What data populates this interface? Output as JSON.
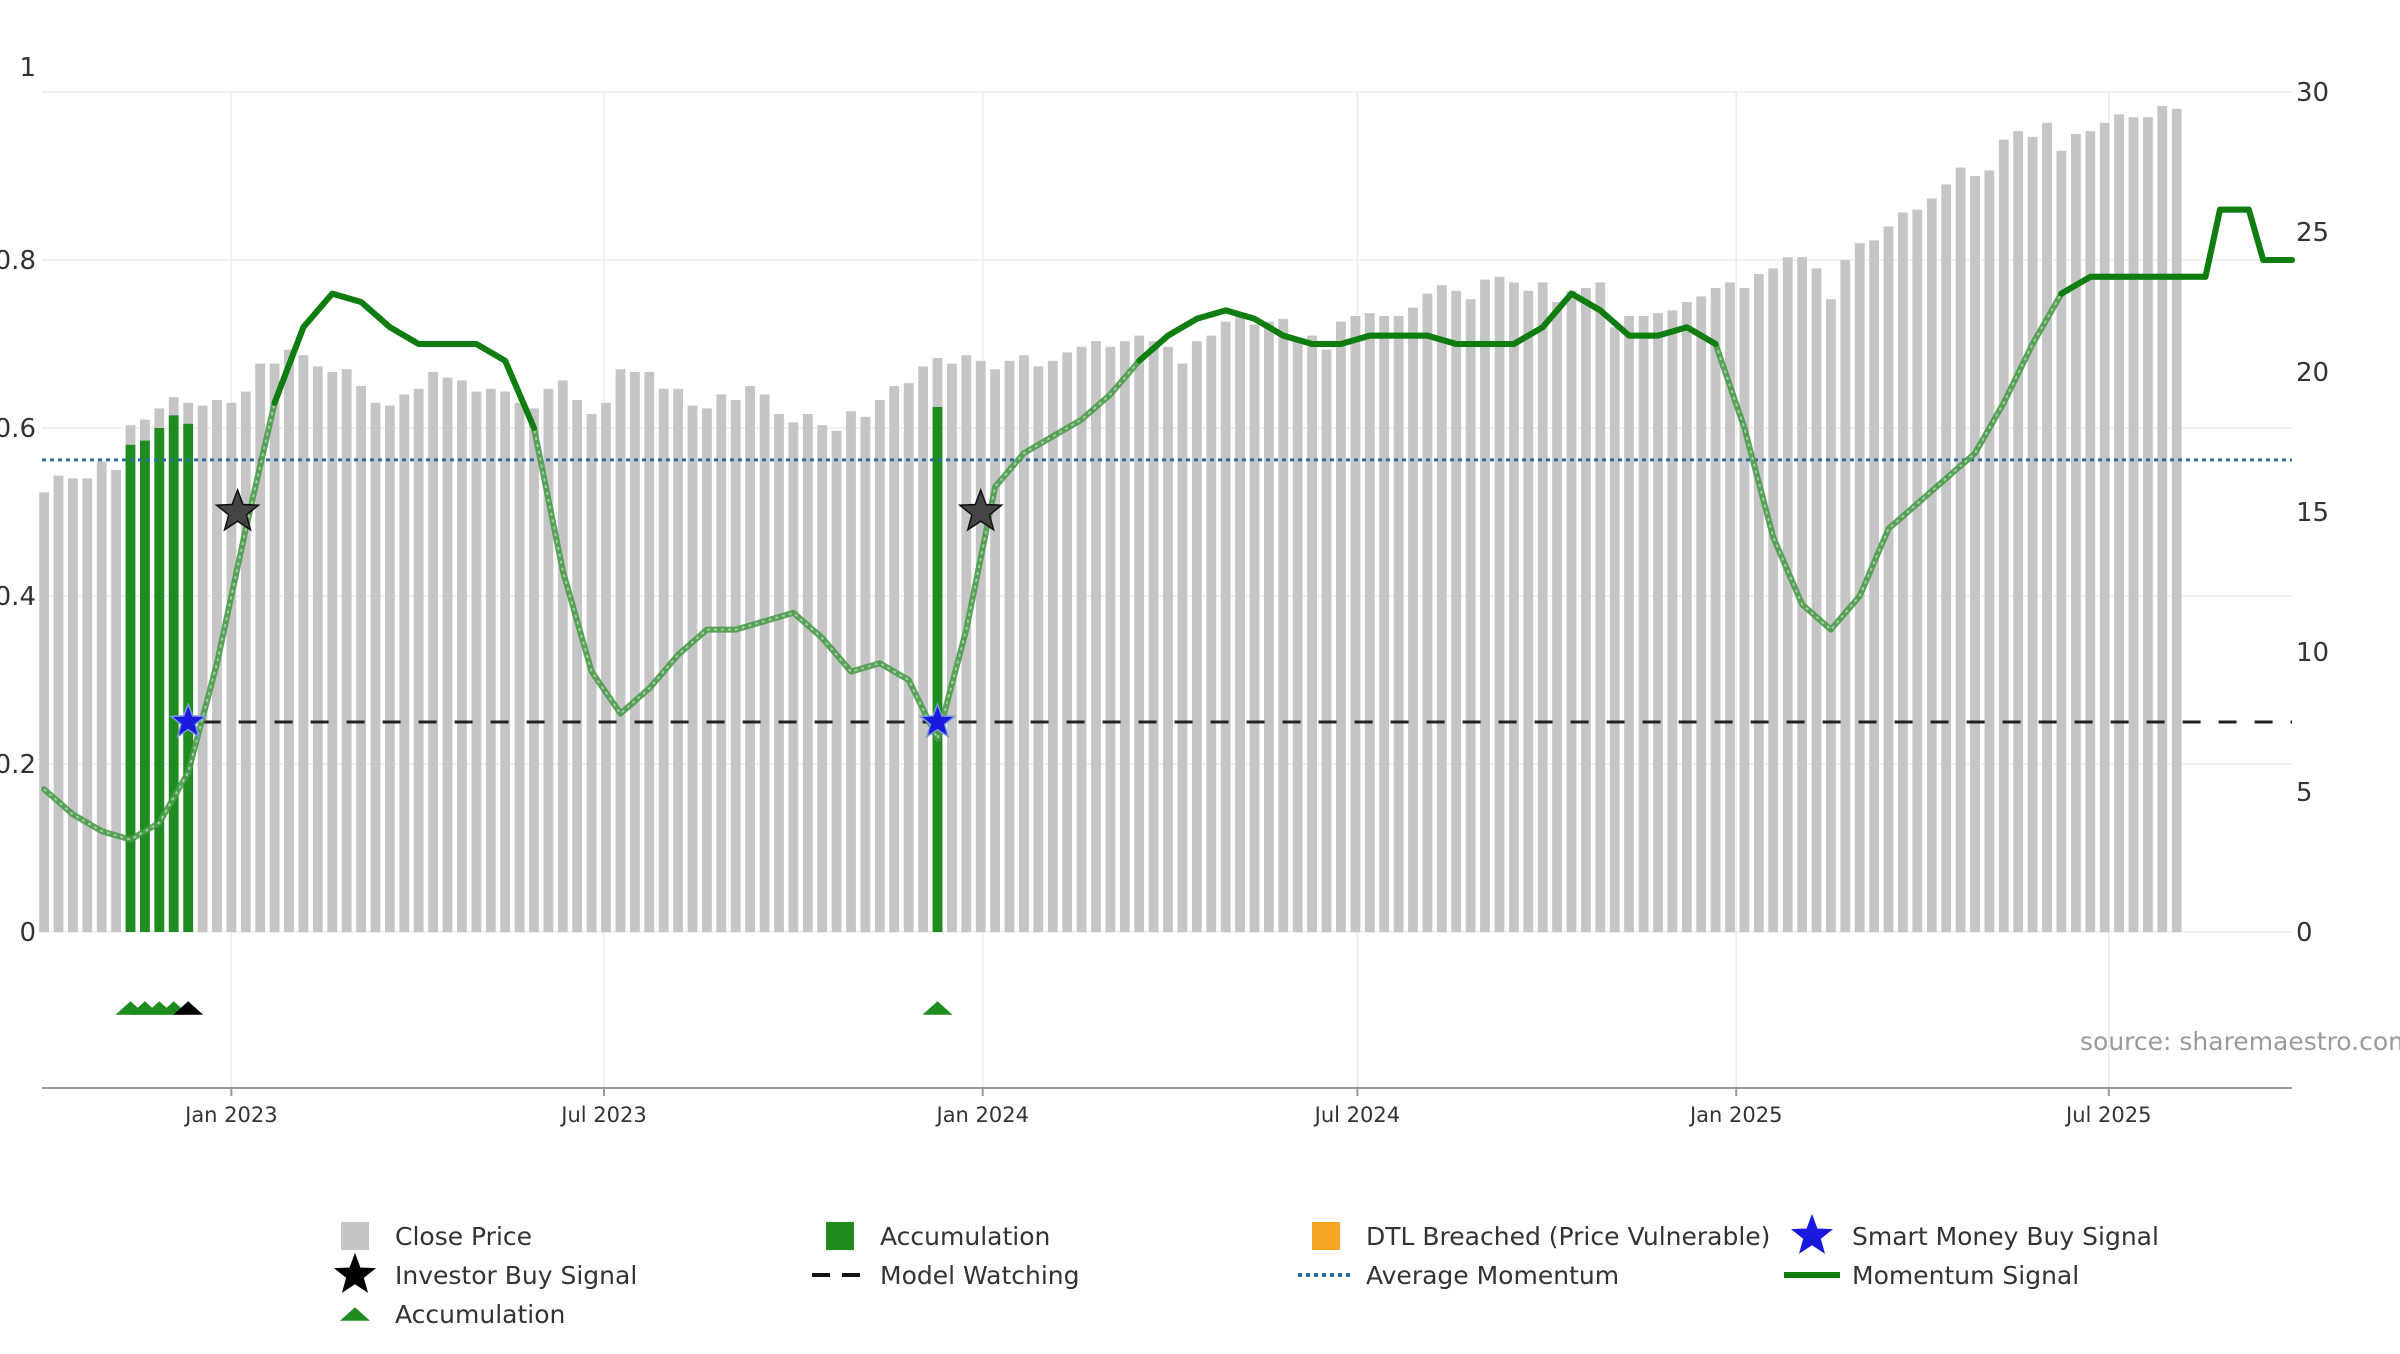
{
  "source_note": "source: sharemaestro.com",
  "chart_data": {
    "type": "bar",
    "title": "",
    "colors": {
      "close_price": "#c5c5c5",
      "accumulation": "#1e8c1e",
      "dtl_breached": "#f5a623",
      "smart_money": "#1a1adf",
      "investor_buy": "#000000",
      "model_watching": "#222222",
      "average_momentum": "#2b6f9e",
      "momentum_signal": "#0f7d0f"
    },
    "left_axis": {
      "ylim": [
        0,
        1
      ],
      "ticks": [
        0,
        0.2,
        0.4,
        0.6,
        0.8,
        1
      ],
      "tick_labels": [
        "0",
        "0.2",
        "0.4",
        "0.6",
        "0.8",
        "1"
      ]
    },
    "right_axis": {
      "ylim": [
        0,
        30
      ],
      "ticks": [
        0,
        5,
        10,
        15,
        20,
        25,
        30
      ],
      "tick_labels": [
        "0",
        "5",
        "10",
        "15",
        "20",
        "25",
        "30"
      ]
    },
    "x_axis": {
      "start": "2022-10-01",
      "end": "2025-09-28",
      "ticks": [
        "2023-01-01",
        "2023-07-01",
        "2024-01-01",
        "2024-07-01",
        "2025-01-01",
        "2025-07-01"
      ],
      "tick_labels": [
        "Jan 2023",
        "Jul 2023",
        "Jan 2024",
        "Jul 2024",
        "Jan 2025",
        "Jul 2025"
      ]
    },
    "grid": true,
    "legend_position": "bottom",
    "weekly_start": "2022-10-02",
    "close_price": [
      15.7,
      16.3,
      16.2,
      16.2,
      16.8,
      16.5,
      18.1,
      18.3,
      18.7,
      19.1,
      18.9,
      18.8,
      19.0,
      18.9,
      19.3,
      20.3,
      20.3,
      20.8,
      20.6,
      20.2,
      20.0,
      20.1,
      19.5,
      18.9,
      18.8,
      19.2,
      19.4,
      20.0,
      19.8,
      19.7,
      19.3,
      19.4,
      19.3,
      18.9,
      18.7,
      19.4,
      19.7,
      19.0,
      18.5,
      18.9,
      20.1,
      20.0,
      20.0,
      19.4,
      19.4,
      18.8,
      18.7,
      19.2,
      19.0,
      19.5,
      19.2,
      18.5,
      18.2,
      18.5,
      18.1,
      17.9,
      18.6,
      18.4,
      19.0,
      19.5,
      19.6,
      20.2,
      20.5,
      20.3,
      20.6,
      20.4,
      20.1,
      20.4,
      20.6,
      20.2,
      20.4,
      20.7,
      20.9,
      21.1,
      20.9,
      21.1,
      21.3,
      21.1,
      20.9,
      20.3,
      21.1,
      21.3,
      21.8,
      22.1,
      21.7,
      21.8,
      21.9,
      21.2,
      21.3,
      20.8,
      21.8,
      22.0,
      22.1,
      22.0,
      22.0,
      22.3,
      22.8,
      23.1,
      22.9,
      22.6,
      23.3,
      23.4,
      23.2,
      22.9,
      23.2,
      22.5,
      22.9,
      23.0,
      23.2,
      21.6,
      22.0,
      22.0,
      22.1,
      22.2,
      22.5,
      22.7,
      23.0,
      23.2,
      23.0,
      23.5,
      23.7,
      24.1,
      24.1,
      23.7,
      22.6,
      24.0,
      24.6,
      24.7,
      25.2,
      25.7,
      25.8,
      26.2,
      26.7,
      27.3,
      27.0,
      27.2,
      28.3,
      28.6,
      28.4,
      28.9,
      27.9,
      28.5,
      28.6,
      28.9,
      29.2,
      29.1,
      29.1,
      29.5,
      29.4
    ],
    "accumulation_bars": [
      {
        "date": "2022-11-13",
        "value": 0.58
      },
      {
        "date": "2022-11-20",
        "value": 0.585
      },
      {
        "date": "2022-11-27",
        "value": 0.6
      },
      {
        "date": "2022-12-04",
        "value": 0.615
      },
      {
        "date": "2022-12-11",
        "value": 0.605
      },
      {
        "date": "2023-12-10",
        "value": 0.625
      }
    ],
    "accumulation_markers": [
      "2022-11-13",
      "2022-11-20",
      "2022-11-27",
      "2022-12-04",
      "2023-12-10"
    ],
    "investor_buy_signal": [
      {
        "date": "2022-12-11",
        "value": -0.09
      },
      {
        "date": "2023-01-04",
        "value": 0.5
      },
      {
        "date": "2023-12-31",
        "value": 0.5
      }
    ],
    "smart_money_buy_signal": [
      {
        "date": "2022-12-11",
        "value": 0.25
      },
      {
        "date": "2023-12-10",
        "value": 0.25
      }
    ],
    "model_watching": {
      "value": 0.25,
      "start": "2022-12-18",
      "end": "2025-09-28"
    },
    "average_momentum": 0.562,
    "momentum_signal": [
      [
        "2022-10-02",
        0.17
      ],
      [
        "2022-10-16",
        0.14
      ],
      [
        "2022-10-30",
        0.12
      ],
      [
        "2022-11-13",
        0.11
      ],
      [
        "2022-11-27",
        0.13
      ],
      [
        "2022-12-11",
        0.19
      ],
      [
        "2022-12-25",
        0.32
      ],
      [
        "2023-01-08",
        0.48
      ],
      [
        "2023-01-22",
        0.63
      ],
      [
        "2023-02-05",
        0.72
      ],
      [
        "2023-02-19",
        0.76
      ],
      [
        "2023-03-05",
        0.75
      ],
      [
        "2023-03-19",
        0.72
      ],
      [
        "2023-04-02",
        0.7
      ],
      [
        "2023-04-16",
        0.7
      ],
      [
        "2023-04-30",
        0.7
      ],
      [
        "2023-05-14",
        0.68
      ],
      [
        "2023-05-28",
        0.6
      ],
      [
        "2023-06-11",
        0.43
      ],
      [
        "2023-06-25",
        0.31
      ],
      [
        "2023-07-09",
        0.26
      ],
      [
        "2023-07-23",
        0.29
      ],
      [
        "2023-08-06",
        0.33
      ],
      [
        "2023-08-20",
        0.36
      ],
      [
        "2023-09-03",
        0.36
      ],
      [
        "2023-09-17",
        0.37
      ],
      [
        "2023-10-01",
        0.38
      ],
      [
        "2023-10-15",
        0.35
      ],
      [
        "2023-10-29",
        0.31
      ],
      [
        "2023-11-12",
        0.32
      ],
      [
        "2023-11-26",
        0.3
      ],
      [
        "2023-12-10",
        0.23
      ],
      [
        "2023-12-24",
        0.36
      ],
      [
        "2024-01-07",
        0.53
      ],
      [
        "2024-01-21",
        0.57
      ],
      [
        "2024-02-04",
        0.59
      ],
      [
        "2024-02-18",
        0.61
      ],
      [
        "2024-03-03",
        0.64
      ],
      [
        "2024-03-17",
        0.68
      ],
      [
        "2024-03-31",
        0.71
      ],
      [
        "2024-04-14",
        0.73
      ],
      [
        "2024-04-28",
        0.74
      ],
      [
        "2024-05-12",
        0.73
      ],
      [
        "2024-05-26",
        0.71
      ],
      [
        "2024-06-09",
        0.7
      ],
      [
        "2024-06-23",
        0.7
      ],
      [
        "2024-07-07",
        0.71
      ],
      [
        "2024-07-21",
        0.71
      ],
      [
        "2024-08-04",
        0.71
      ],
      [
        "2024-08-18",
        0.7
      ],
      [
        "2024-09-01",
        0.7
      ],
      [
        "2024-09-15",
        0.7
      ],
      [
        "2024-09-29",
        0.72
      ],
      [
        "2024-10-13",
        0.76
      ],
      [
        "2024-10-27",
        0.74
      ],
      [
        "2024-11-10",
        0.71
      ],
      [
        "2024-11-24",
        0.71
      ],
      [
        "2024-12-08",
        0.72
      ],
      [
        "2024-12-22",
        0.7
      ],
      [
        "2025-01-05",
        0.6
      ],
      [
        "2025-01-19",
        0.47
      ],
      [
        "2025-02-02",
        0.39
      ],
      [
        "2025-02-16",
        0.36
      ],
      [
        "2025-03-02",
        0.4
      ],
      [
        "2025-03-16",
        0.48
      ],
      [
        "2025-03-30",
        0.51
      ],
      [
        "2025-04-13",
        0.54
      ],
      [
        "2025-04-27",
        0.57
      ],
      [
        "2025-05-11",
        0.63
      ],
      [
        "2025-05-25",
        0.7
      ],
      [
        "2025-06-08",
        0.76
      ],
      [
        "2025-06-22",
        0.78
      ],
      [
        "2025-07-06",
        0.78
      ],
      [
        "2025-07-20",
        0.78
      ],
      [
        "2025-08-03",
        0.78
      ],
      [
        "2025-08-17",
        0.78
      ],
      [
        "2025-08-24",
        0.86
      ],
      [
        "2025-09-07",
        0.86
      ],
      [
        "2025-09-14",
        0.8
      ],
      [
        "2025-09-28",
        0.8
      ]
    ],
    "momentum_bold_ranges": [
      [
        "2023-01-10",
        "2023-06-01"
      ],
      [
        "2024-03-10",
        "2024-12-25"
      ],
      [
        "2025-05-30",
        "2025-09-28"
      ]
    ],
    "legend": [
      {
        "label": "Close Price",
        "symbol": "square",
        "color": "#c5c5c5"
      },
      {
        "label": "Accumulation",
        "symbol": "square",
        "color": "#1e8c1e"
      },
      {
        "label": "DTL Breached (Price Vulnerable)",
        "symbol": "square",
        "color": "#f5a623"
      },
      {
        "label": "Smart Money Buy Signal",
        "symbol": "star",
        "color": "#1a1adf"
      },
      {
        "label": "Investor Buy Signal",
        "symbol": "star",
        "color": "#000000"
      },
      {
        "label": "Model Watching",
        "symbol": "dash",
        "color": "#111111"
      },
      {
        "label": "Average Momentum",
        "symbol": "dot",
        "color": "#2b6f9e"
      },
      {
        "label": "Momentum Signal",
        "symbol": "line",
        "color": "#0f7d0f"
      },
      {
        "label": "Accumulation",
        "symbol": "triangle",
        "color": "#1e8c1e"
      }
    ]
  }
}
